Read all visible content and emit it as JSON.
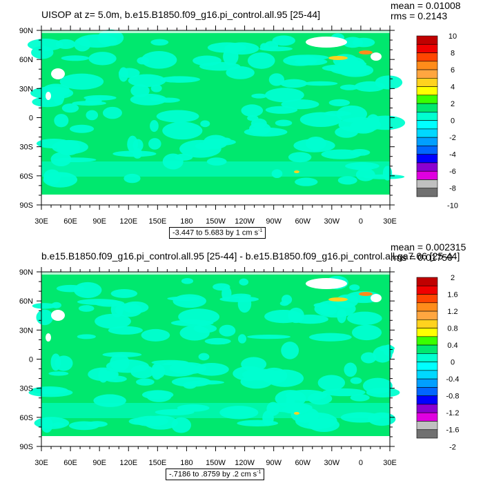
{
  "chart_data": [
    {
      "type": "heatmap",
      "title": "UISOP at z=   5.0m, b.e15.B1850.f09_g16.pi_control.all.95 [25-44]",
      "stats": {
        "mean": "mean = 0.01008",
        "rms": "rms = 0.2143"
      },
      "range_label": "-3.447 to 5.683 by 1 cm s",
      "range_exponent": "-1",
      "x_ticks": [
        "30E",
        "60E",
        "90E",
        "120E",
        "150E",
        "180",
        "150W",
        "120W",
        "90W",
        "60W",
        "30W",
        "0",
        "30E"
      ],
      "y_ticks": [
        "90N",
        "60N",
        "30N",
        "0",
        "30S",
        "60S",
        "90S"
      ],
      "colorbar_labels": [
        "10",
        "8",
        "6",
        "4",
        "2",
        "0",
        "-2",
        "-4",
        "-6",
        "-8",
        "-10"
      ],
      "colors": [
        "#c00000",
        "#f00000",
        "#ff4500",
        "#ff8c1a",
        "#ffa640",
        "#ffd21e",
        "#ffff00",
        "#39ff00",
        "#00e86e",
        "#00ffd0",
        "#00ffff",
        "#00d8ff",
        "#009fff",
        "#0066ff",
        "#0000ff",
        "#8b00d0",
        "#e000e0",
        "#c0c0c0",
        "#707070"
      ],
      "field_colors": {
        "main": "#00e86e",
        "secondary": "#00ffd0",
        "land": "#ffffff",
        "warm": "#ffd21e",
        "hot": "#ff8c1a"
      }
    },
    {
      "type": "heatmap",
      "title": "b.e15.B1850.f09_g16.pi_control.all.95 [25-44] - b.e15.B1850.f09_g16.pi_control.all.ga7.66 [25-44]",
      "stats": {
        "mean": "mean = 0.002315",
        "rms": "rms = 0.01750"
      },
      "range_label": "-.7186 to .8759 by .2 cm s",
      "range_exponent": "-1",
      "x_ticks": [
        "30E",
        "60E",
        "90E",
        "120E",
        "150E",
        "180",
        "150W",
        "120W",
        "90W",
        "60W",
        "30W",
        "0",
        "30E"
      ],
      "y_ticks": [
        "90N",
        "60N",
        "30N",
        "0",
        "30S",
        "60S",
        "90S"
      ],
      "colorbar_labels": [
        "2",
        "1.6",
        "1.2",
        "0.8",
        "0.4",
        "0",
        "-0.4",
        "-0.8",
        "-1.2",
        "-1.6",
        "-2"
      ],
      "colors": [
        "#c00000",
        "#f00000",
        "#ff4500",
        "#ff8c1a",
        "#ffa640",
        "#ffd21e",
        "#ffff00",
        "#39ff00",
        "#00e86e",
        "#00ffd0",
        "#00ffff",
        "#00d8ff",
        "#009fff",
        "#0066ff",
        "#0000ff",
        "#8b00d0",
        "#e000e0",
        "#c0c0c0",
        "#707070"
      ],
      "field_colors": {
        "main": "#00e86e",
        "secondary": "#00ffd0",
        "land": "#ffffff",
        "warm": "#ffd21e",
        "hot": "#ff8c1a"
      }
    }
  ]
}
